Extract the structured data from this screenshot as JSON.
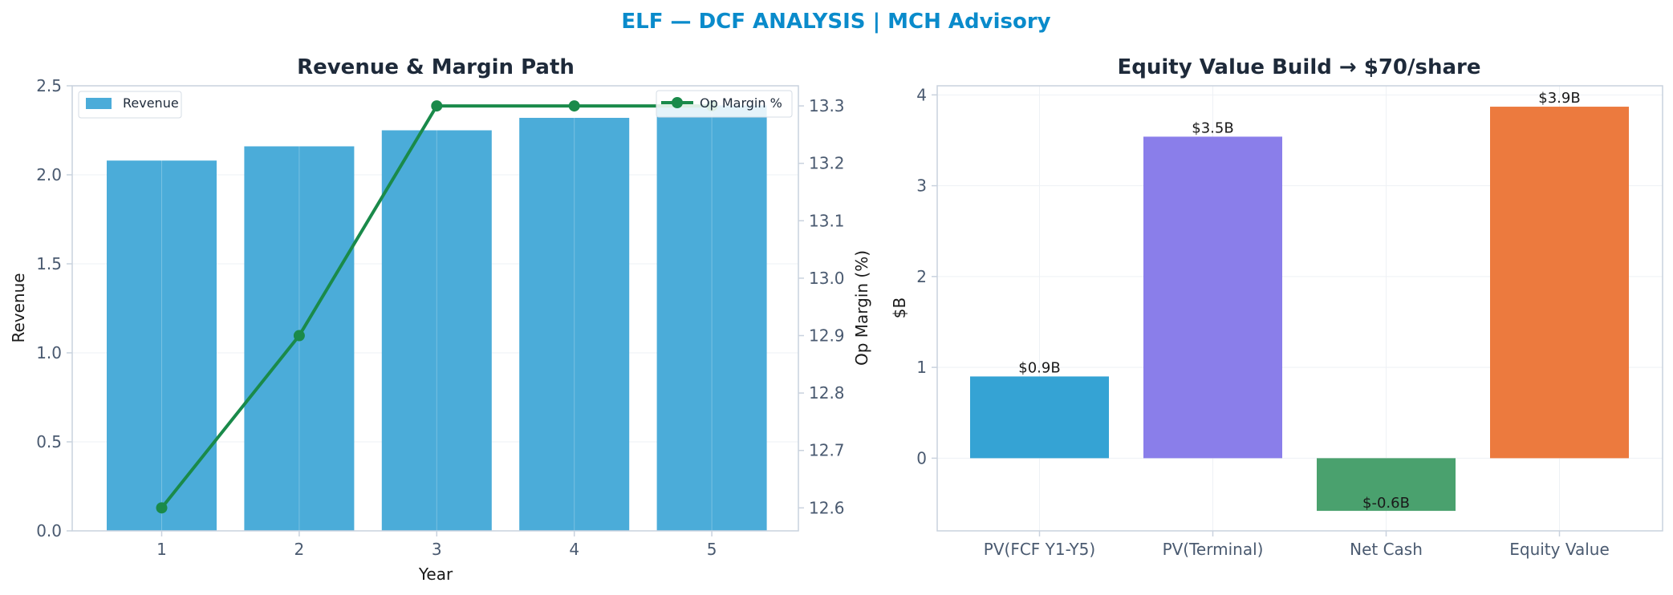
{
  "suptitle": "ELF — DCF ANALYSIS | MCH Advisory",
  "colors": {
    "suptitle": "#0A8BCB",
    "title": "#1E2A3A",
    "axis_text": "#4A5A70",
    "label_text": "#1A1A1A",
    "spine": "#C9D2DE",
    "grid": "#EEF1F5",
    "revenue_bar": "#4BACD9",
    "margin_line": "#1A8A4A"
  },
  "chart_data": [
    {
      "type": "bar",
      "title": "Revenue & Margin Path",
      "xlabel": "Year",
      "ylabel": "Revenue",
      "y2label": "Op Margin (%)",
      "categories": [
        "1",
        "2",
        "3",
        "4",
        "5"
      ],
      "ylim": [
        0,
        2.5
      ],
      "yticks": [
        "0.0",
        "0.5",
        "1.0",
        "1.5",
        "2.0",
        "2.5"
      ],
      "y2lim": [
        12.56,
        13.335
      ],
      "y2ticks": [
        "12.6",
        "12.7",
        "12.8",
        "12.9",
        "13.0",
        "13.1",
        "13.2",
        "13.3"
      ],
      "grid": true,
      "series": [
        {
          "name": "Revenue",
          "type": "bar",
          "axis": "left",
          "values": [
            2.08,
            2.16,
            2.25,
            2.32,
            2.39
          ]
        },
        {
          "name": "Op Margin %",
          "type": "line",
          "axis": "right",
          "values": [
            12.6,
            12.9,
            13.3,
            13.3,
            13.3
          ]
        }
      ],
      "legends": [
        {
          "label": "Revenue",
          "placement": "top-left"
        },
        {
          "label": "Op Margin %",
          "placement": "top-right"
        }
      ]
    },
    {
      "type": "bar",
      "title": "Equity Value Build → $70/share",
      "xlabel": "",
      "ylabel": "$B",
      "categories": [
        "PV(FCF Y1-Y5)",
        "PV(Terminal)",
        "Net Cash",
        "Equity Value"
      ],
      "values": [
        0.9,
        3.54,
        -0.58,
        3.87
      ],
      "data_labels": [
        "$0.9B",
        "$3.5B",
        "$-0.6B",
        "$3.9B"
      ],
      "colors": [
        "#35A3D4",
        "#8A7EEA",
        "#4AA16E",
        "#EC7A3E"
      ],
      "ylim": [
        -0.8,
        4.1
      ],
      "yticks": [
        "0",
        "1",
        "2",
        "3",
        "4"
      ],
      "grid": true
    }
  ]
}
